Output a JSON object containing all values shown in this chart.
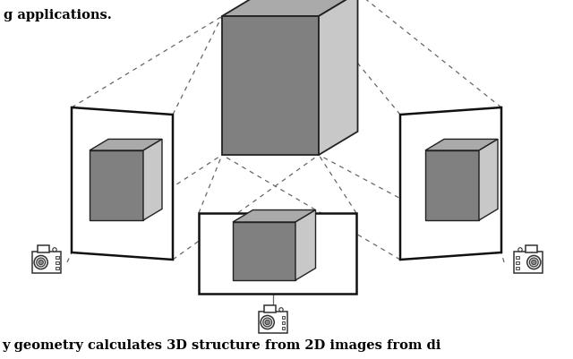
{
  "bg_color": "#ffffff",
  "top_text": "g applications.",
  "bottom_text": "y geometry calculates 3D structure from 2D images from di",
  "cube_top_color": "#aaaaaa",
  "cube_left_color": "#808080",
  "cube_right_color": "#c8c8c8",
  "cube_outline_color": "#222222",
  "frame_color": "#111111",
  "dashed_color": "#666666",
  "camera_color": "#333333"
}
